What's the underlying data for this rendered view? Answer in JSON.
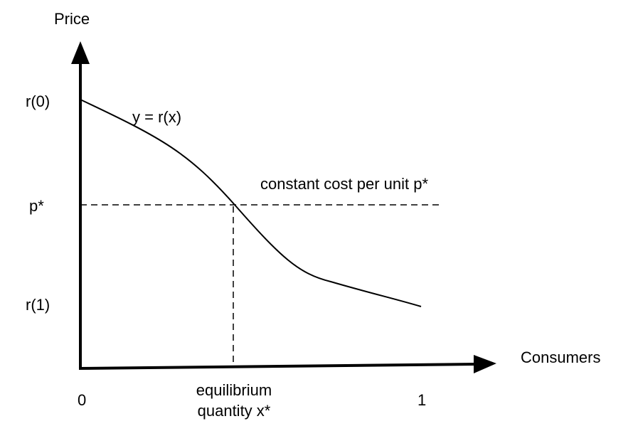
{
  "axes": {
    "y_label": "Price",
    "x_label": "Consumers"
  },
  "y_ticks": {
    "r0": "r(0)",
    "p_star": "p*",
    "r1": "r(1)"
  },
  "x_ticks": {
    "zero": "0",
    "one": "1"
  },
  "curve_label": "y = r(x)",
  "cost_line_label": "constant cost per unit p*",
  "equilibrium_label": {
    "line1": "equilibrium",
    "line2": "quantity x*"
  },
  "colors": {
    "ink": "#000000",
    "background": "#ffffff"
  }
}
